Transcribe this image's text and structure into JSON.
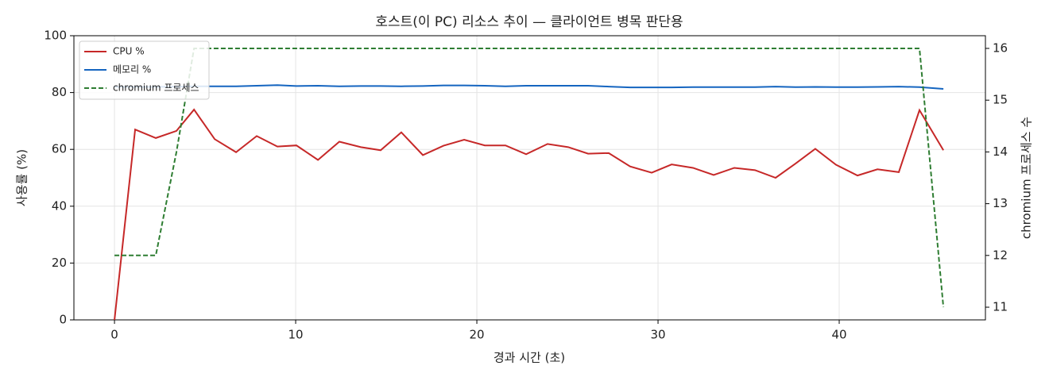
{
  "chart_data": {
    "type": "line",
    "title": "호스트(이 PC) 리소스 추이 — 클라이언트 병목 판단용",
    "xlabel": "경과 시간 (초)",
    "ylabel": "사용률 (%)",
    "y2label": "chromium 프로세스 수",
    "x": [
      0,
      1.14,
      2.28,
      3.42,
      4.39,
      5.53,
      6.71,
      7.85,
      8.99,
      10.04,
      11.23,
      12.41,
      13.6,
      14.69,
      15.83,
      17.02,
      18.16,
      19.3,
      20.44,
      21.58,
      22.72,
      23.9,
      25.04,
      26.14,
      27.28,
      28.46,
      29.65,
      30.75,
      31.93,
      33.07,
      34.21,
      35.35,
      36.49,
      37.59,
      38.68,
      39.82,
      41.01,
      42.11,
      43.29,
      44.43,
      45.75
    ],
    "series": [
      {
        "name": "CPU %",
        "color": "#c62828",
        "values": [
          0,
          67,
          64,
          66.5,
          74,
          63.6,
          59,
          64.7,
          61,
          61.4,
          56.3,
          62.7,
          60.8,
          59.7,
          66,
          58,
          61.3,
          63.4,
          61.4,
          61.4,
          58.3,
          61.9,
          60.8,
          58.5,
          58.7,
          54,
          51.8,
          54.7,
          53.5,
          51,
          53.5,
          52.7,
          50,
          55,
          60.2,
          54.6,
          50.8,
          53,
          52,
          73.8,
          59.7
        ]
      },
      {
        "name": "메모리 %",
        "color": "#1565c0",
        "values": [
          82,
          82,
          82,
          82.1,
          82.2,
          82.2,
          82.2,
          82.4,
          82.6,
          82.3,
          82.4,
          82.2,
          82.3,
          82.3,
          82.2,
          82.3,
          82.5,
          82.5,
          82.4,
          82.2,
          82.4,
          82.4,
          82.4,
          82.4,
          82.1,
          81.8,
          81.8,
          81.8,
          81.9,
          81.9,
          81.9,
          81.9,
          82.1,
          81.9,
          82,
          81.9,
          81.9,
          82,
          82.1,
          81.9,
          81.3
        ]
      },
      {
        "name": "chromium 프로세스",
        "color": "#2e7d32",
        "linestyle": "dashed",
        "axis": "y2",
        "values": [
          12,
          12,
          12,
          14,
          16,
          16,
          16,
          16,
          16,
          16,
          16,
          16,
          16,
          16,
          16,
          16,
          16,
          16,
          16,
          16,
          16,
          16,
          16,
          16,
          16,
          16,
          16,
          16,
          16,
          16,
          16,
          16,
          16,
          16,
          16,
          16,
          16,
          16,
          16,
          16,
          11
        ]
      }
    ],
    "xlim": [
      -2.24,
      48.07
    ],
    "xticks": [
      0,
      10,
      20,
      30,
      40
    ],
    "ylim": [
      0,
      100
    ],
    "yticks": [
      0,
      20,
      40,
      60,
      80,
      100
    ],
    "y2lim": [
      10.755,
      16.245
    ],
    "y2ticks": [
      11,
      12,
      13,
      14,
      15,
      16
    ],
    "grid": true,
    "legend": "upper-left"
  }
}
